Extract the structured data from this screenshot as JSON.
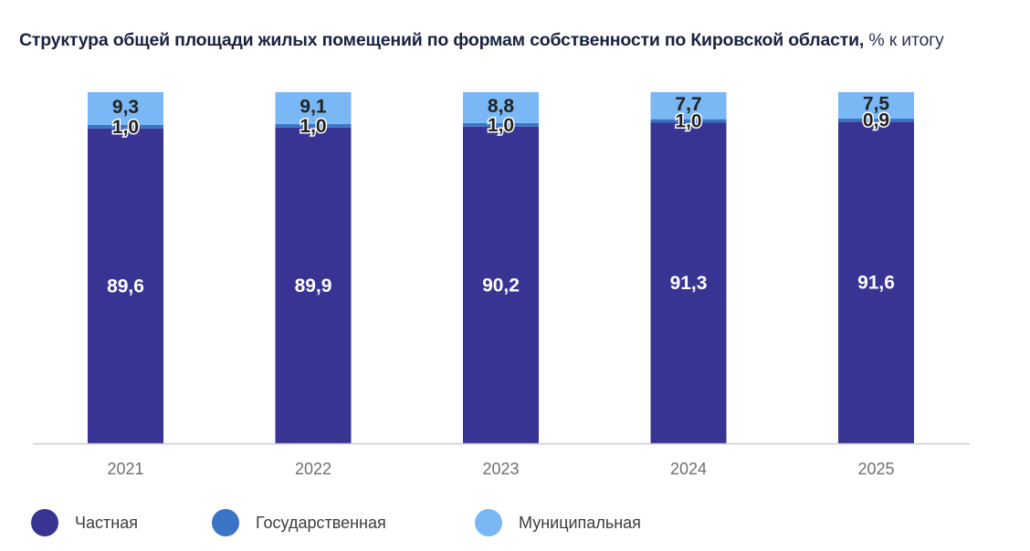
{
  "title": {
    "main": "Структура общей площади жилых помещений по формам собственности по Кировской области,",
    "unit": "% к итогу"
  },
  "colors": {
    "private": "#383493",
    "state": "#3a74c4",
    "municipal": "#7ab8f5",
    "axis": "#cccccc",
    "tick_text": "#6f6f6f",
    "label_light": "#ffffff",
    "label_dark": "#222222"
  },
  "chart_data": {
    "type": "bar",
    "stacked": true,
    "categories": [
      "2021",
      "2022",
      "2023",
      "2024",
      "2025"
    ],
    "series": [
      {
        "name": "Частная",
        "values": [
          89.6,
          89.9,
          90.2,
          91.3,
          91.6
        ],
        "labels": [
          "89,6",
          "89,9",
          "90,2",
          "91,3",
          "91,6"
        ]
      },
      {
        "name": "Государственная",
        "values": [
          1.0,
          1.0,
          1.0,
          1.0,
          0.9
        ],
        "labels": [
          "1,0",
          "1,0",
          "1,0",
          "1,0",
          "0,9"
        ]
      },
      {
        "name": "Муниципальная",
        "values": [
          9.3,
          9.1,
          8.8,
          7.7,
          7.5
        ],
        "labels": [
          "9,3",
          "9,1",
          "8,8",
          "7,7",
          "7,5"
        ]
      }
    ],
    "ylim": [
      0,
      100
    ],
    "grid": false,
    "legend_position": "bottom"
  },
  "legend": [
    {
      "label": "Частная",
      "color_key": "private"
    },
    {
      "label": "Государственная",
      "color_key": "state"
    },
    {
      "label": "Муниципальная",
      "color_key": "municipal"
    }
  ]
}
